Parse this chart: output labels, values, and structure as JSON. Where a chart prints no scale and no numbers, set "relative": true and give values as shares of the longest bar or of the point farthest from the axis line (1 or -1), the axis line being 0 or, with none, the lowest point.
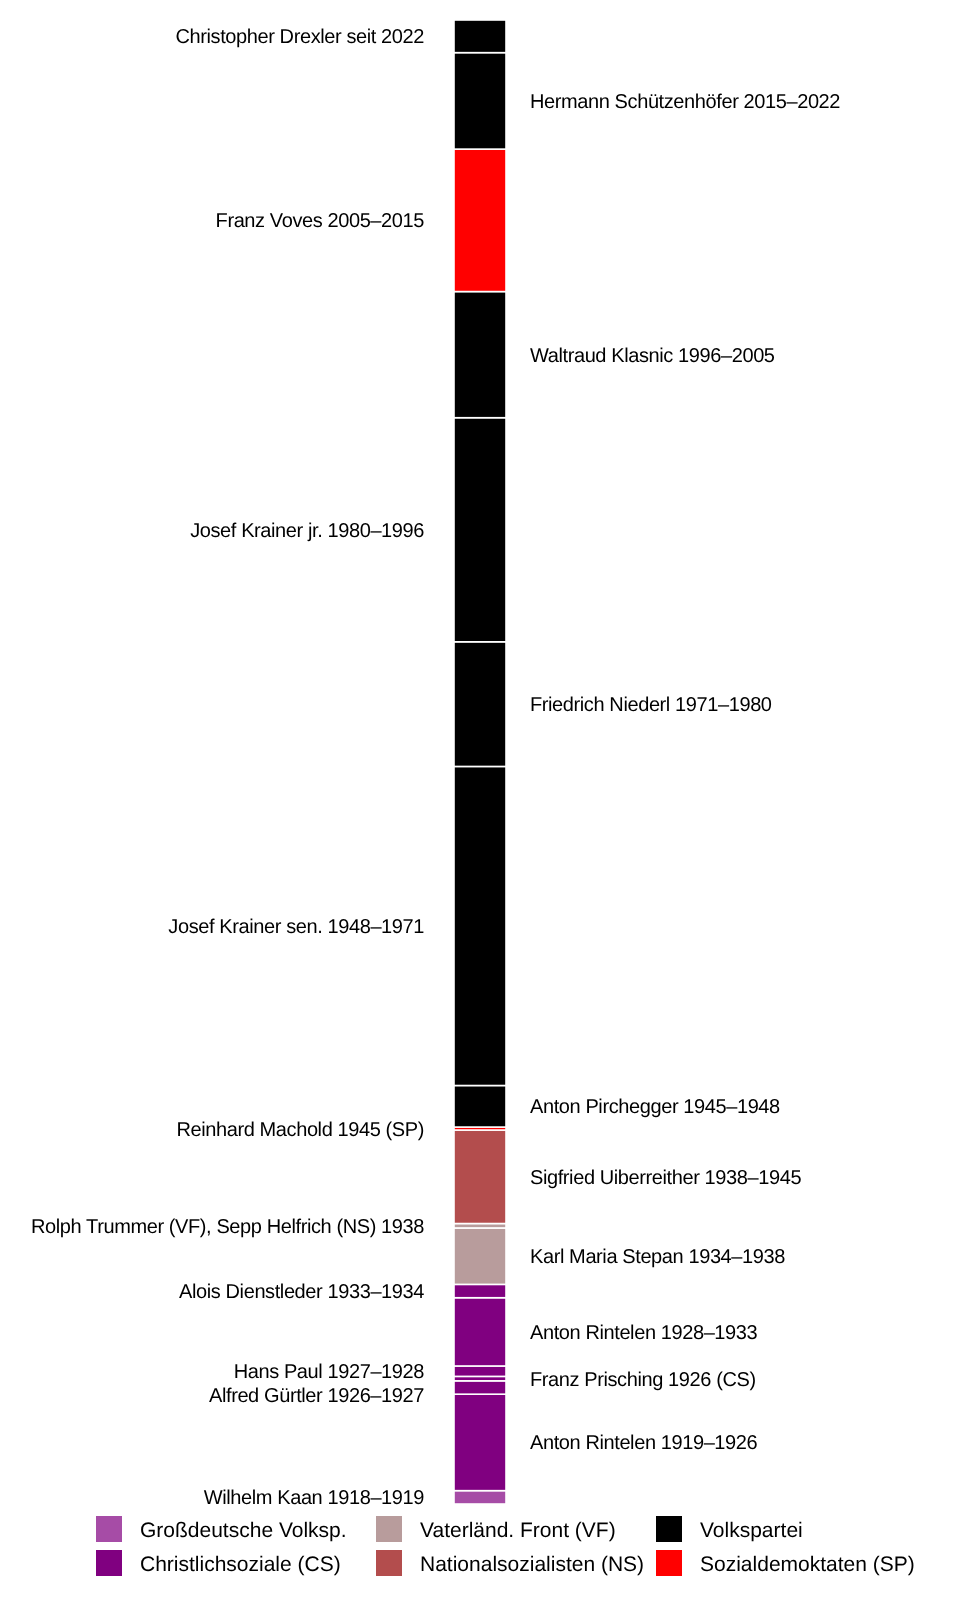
{
  "chart_data": {
    "type": "bar",
    "stacked": true,
    "relative": true,
    "categories": [
      null
    ],
    "legend": "bottom",
    "series": [
      {
        "name": "Wilhelm Kaan 1918–1919",
        "color": "#a64ca6",
        "values": [
          0.009
        ]
      },
      {
        "name": "Anton Rintelen 1919–1926",
        "color": "#800080",
        "values": [
          0.065
        ]
      },
      {
        "name": "Alfred Gürtler 1926–1927",
        "color": "#800080",
        "values": [
          0.009
        ]
      },
      {
        "name": "Franz Prisching 1926 (CS)",
        "color": "#800080",
        "values": [
          0.003
        ]
      },
      {
        "name": "Hans Paul 1927–1928",
        "color": "#800080",
        "values": [
          0.007
        ]
      },
      {
        "name": "Anton Rintelen 1928–1933",
        "color": "#800080",
        "values": [
          0.046
        ]
      },
      {
        "name": "Alois Dienstleder 1933–1934",
        "color": "#800080",
        "values": [
          0.009
        ]
      },
      {
        "name": "Karl Maria Stepan 1934–1938",
        "color": "#b89c9c",
        "values": [
          0.038
        ]
      },
      {
        "name": "Rolph Trummer (VF), Sepp Helfrich (NS) 1938",
        "color": "#b89c9c",
        "values": [
          0.003
        ]
      },
      {
        "name": "Sigfried Uiberreither 1938–1945",
        "color": "#b34d4d",
        "values": [
          0.063
        ]
      },
      {
        "name": "Reinhard Machold 1945 (SP)",
        "color": "#ff0000",
        "values": [
          0.002
        ]
      },
      {
        "name": "Anton Pirchegger 1945–1948",
        "color": "#000000",
        "values": [
          0.028
        ]
      },
      {
        "name": "Josef Krainer sen. 1948–1971",
        "color": "#000000",
        "values": [
          0.215
        ]
      },
      {
        "name": "Friedrich Niederl 1971–1980",
        "color": "#000000",
        "values": [
          0.084
        ]
      },
      {
        "name": "Josef Krainer jr. 1980–1996",
        "color": "#000000",
        "values": [
          0.151
        ]
      },
      {
        "name": "Waltraud Klasnic 1996–2005",
        "color": "#000000",
        "values": [
          0.085
        ]
      },
      {
        "name": "Franz Voves 2005–2015",
        "color": "#ff0000",
        "values": [
          0.096
        ]
      },
      {
        "name": "Hermann Schützenhöfer 2015–2022",
        "color": "#000000",
        "values": [
          0.065
        ]
      },
      {
        "name": "Christopher Drexler seit 2022",
        "color": "#000000",
        "values": [
          0.022
        ]
      },
      {
        "name": "Großdeutsche Volksp.",
        "color": "#a64ca6",
        "values": [
          null
        ]
      },
      {
        "name": "Christlichsoziale (CS)",
        "color": "#800080",
        "values": [
          null
        ]
      },
      {
        "name": "Vaterländ. Front (VF)",
        "color": "#b89c9c",
        "values": [
          null
        ]
      },
      {
        "name": "Nationalsozialisten (NS)",
        "color": "#b34d4d",
        "values": [
          null
        ]
      },
      {
        "name": "Volkspartei",
        "color": "#000000",
        "values": [
          null
        ]
      },
      {
        "name": "Sozialdemoktaten (SP)",
        "color": "#ff0000",
        "values": [
          null
        ]
      }
    ]
  }
}
